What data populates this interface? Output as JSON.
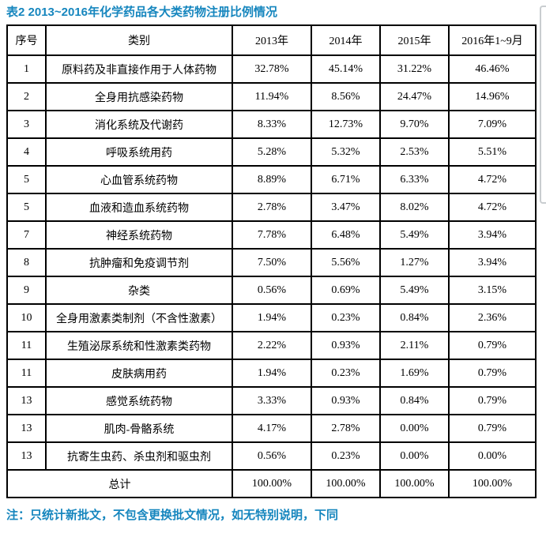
{
  "title": "表2 2013~2016年化学药品各大类药物注册比例情况",
  "note": "注：只统计新批文，不包含更换批文情况，如无特别说明，下同",
  "colors": {
    "accent_blue": "#1686be",
    "table_border": "#000000",
    "side_box_gray": "#c9cdd0",
    "background": "#ffffff"
  },
  "table": {
    "headers": [
      "序号",
      "类别",
      "2013年",
      "2014年",
      "2015年",
      "2016年1~9月"
    ],
    "rows": [
      {
        "no": "1",
        "category": "原料药及非直接作用于人体药物",
        "values": [
          "32.78%",
          "45.14%",
          "31.22%",
          "46.46%"
        ]
      },
      {
        "no": "2",
        "category": "全身用抗感染药物",
        "values": [
          "11.94%",
          "8.56%",
          "24.47%",
          "14.96%"
        ]
      },
      {
        "no": "3",
        "category": "消化系统及代谢药",
        "values": [
          "8.33%",
          "12.73%",
          "9.70%",
          "7.09%"
        ]
      },
      {
        "no": "4",
        "category": "呼吸系统用药",
        "values": [
          "5.28%",
          "5.32%",
          "2.53%",
          "5.51%"
        ]
      },
      {
        "no": "5",
        "category": "心血管系统药物",
        "values": [
          "8.89%",
          "6.71%",
          "6.33%",
          "4.72%"
        ]
      },
      {
        "no": "5",
        "category": "血液和造血系统药物",
        "values": [
          "2.78%",
          "3.47%",
          "8.02%",
          "4.72%"
        ]
      },
      {
        "no": "7",
        "category": "神经系统药物",
        "values": [
          "7.78%",
          "6.48%",
          "5.49%",
          "3.94%"
        ]
      },
      {
        "no": "8",
        "category": "抗肿瘤和免疫调节剂",
        "values": [
          "7.50%",
          "5.56%",
          "1.27%",
          "3.94%"
        ]
      },
      {
        "no": "9",
        "category": "杂类",
        "values": [
          "0.56%",
          "0.69%",
          "5.49%",
          "3.15%"
        ]
      },
      {
        "no": "10",
        "category": "全身用激素类制剂（不含性激素）",
        "values": [
          "1.94%",
          "0.23%",
          "0.84%",
          "2.36%"
        ]
      },
      {
        "no": "11",
        "category": "生殖泌尿系统和性激素类药物",
        "values": [
          "2.22%",
          "0.93%",
          "2.11%",
          "0.79%"
        ]
      },
      {
        "no": "11",
        "category": "皮肤病用药",
        "values": [
          "1.94%",
          "0.23%",
          "1.69%",
          "0.79%"
        ]
      },
      {
        "no": "13",
        "category": "感觉系统药物",
        "values": [
          "3.33%",
          "0.93%",
          "0.84%",
          "0.79%"
        ]
      },
      {
        "no": "13",
        "category": "肌肉-骨骼系统",
        "values": [
          "4.17%",
          "2.78%",
          "0.00%",
          "0.79%"
        ]
      },
      {
        "no": "13",
        "category": "抗寄生虫药、杀虫剂和驱虫剂",
        "values": [
          "0.56%",
          "0.23%",
          "0.00%",
          "0.00%"
        ]
      }
    ],
    "total": {
      "label": "总计",
      "values": [
        "100.00%",
        "100.00%",
        "100.00%",
        "100.00%"
      ]
    }
  }
}
